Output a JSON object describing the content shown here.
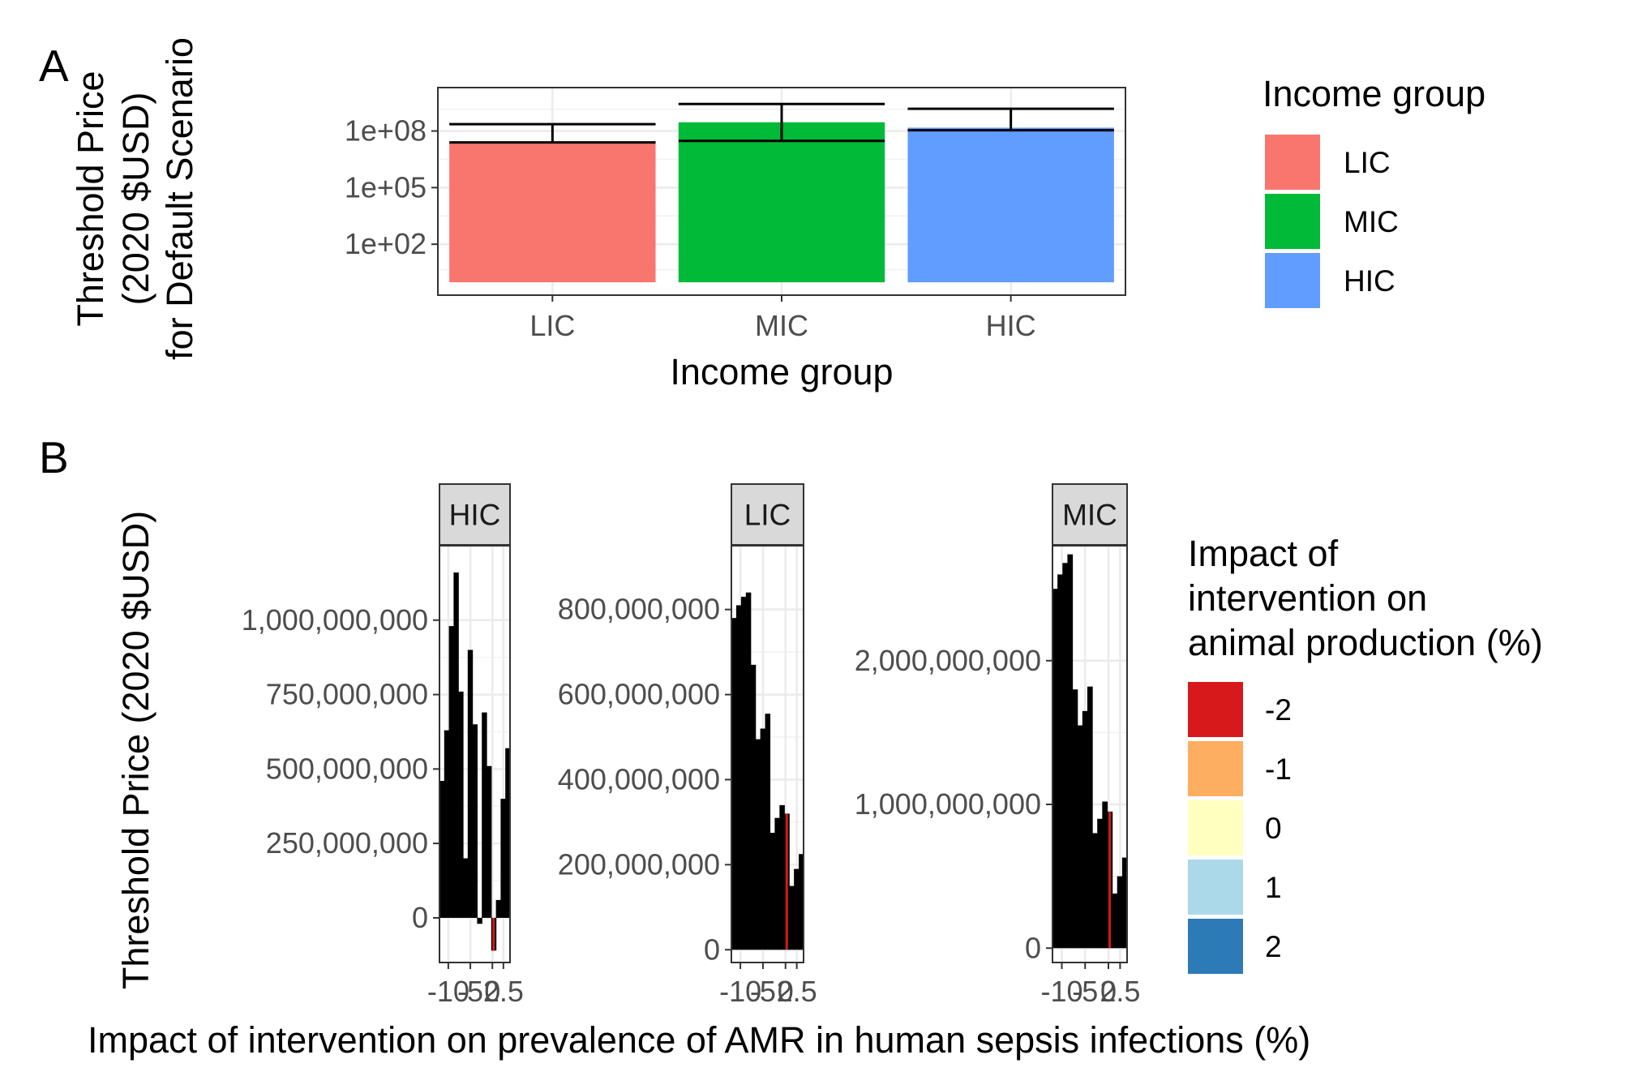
{
  "chart_data": [
    {
      "panel": "A",
      "type": "bar",
      "scale": "log10",
      "ylabel_lines": [
        "Threshold Price",
        "(2020 $USD)",
        "for Default Scenario"
      ],
      "xlabel": "Income group",
      "categories": [
        "LIC",
        "MIC",
        "HIC"
      ],
      "values": [
        25000000.0,
        290000000.0,
        150000000.0
      ],
      "error_bars": [
        {
          "low": 25000000.0,
          "high": 230000000.0
        },
        {
          "low": 30000000.0,
          "high": 2700000000.0
        },
        {
          "low": 110000000.0,
          "high": 1500000000.0
        }
      ],
      "y_ticks": [
        {
          "label": "1e+02",
          "value": 100
        },
        {
          "label": "1e+05",
          "value": 100000
        },
        {
          "label": "1e+08",
          "value": 100000000
        }
      ],
      "ylim": [
        0.2,
        20000000000.0
      ],
      "grid": true,
      "legend": {
        "title": "Income group",
        "position": "right",
        "items": [
          {
            "label": "LIC",
            "color": "#F8766D"
          },
          {
            "label": "MIC",
            "color": "#00BA38"
          },
          {
            "label": "HIC",
            "color": "#619CFF"
          }
        ]
      }
    },
    {
      "panel": "B",
      "type": "bar",
      "ylabel": "Threshold Price (2020 $USD)",
      "xlabel": "Impact of intervention on prevalence of AMR in human sepsis infections (%)",
      "x_tick_labels": [
        "-10",
        "-5",
        "0",
        "2.5"
      ],
      "facets": [
        {
          "label": "HIC",
          "ylim": [
            -150000000,
            1250000000
          ],
          "y_ticks": [
            {
              "label": "0",
              "value": 0
            },
            {
              "label": "250,000,000",
              "value": 250000000
            },
            {
              "label": "500,000,000",
              "value": 500000000
            },
            {
              "label": "750,000,000",
              "value": 750000000
            },
            {
              "label": "1,000,000,000",
              "value": 1000000000
            }
          ],
          "values": [
            460000000,
            630000000,
            980000000,
            1160000000,
            760000000,
            200000000,
            900000000,
            650000000,
            -20000000,
            690000000,
            510000000,
            -110000000,
            60000000,
            400000000,
            570000000
          ],
          "highlight_index": 11
        },
        {
          "label": "LIC",
          "ylim": [
            -30000000,
            950000000
          ],
          "y_ticks": [
            {
              "label": "0",
              "value": 0
            },
            {
              "label": "200,000,000",
              "value": 200000000
            },
            {
              "label": "400,000,000",
              "value": 400000000
            },
            {
              "label": "600,000,000",
              "value": 600000000
            },
            {
              "label": "800,000,000",
              "value": 800000000
            }
          ],
          "values": [
            780000000,
            810000000,
            830000000,
            840000000,
            670000000,
            495000000,
            520000000,
            555000000,
            275000000,
            310000000,
            340000000,
            320000000,
            150000000,
            190000000,
            225000000
          ],
          "highlight_index": 11
        },
        {
          "label": "MIC",
          "ylim": [
            -100000000,
            2800000000
          ],
          "y_ticks": [
            {
              "label": "0",
              "value": 0
            },
            {
              "label": "1,000,000,000",
              "value": 1000000000
            },
            {
              "label": "2,000,000,000",
              "value": 2000000000
            }
          ],
          "values": [
            2500000000,
            2600000000,
            2680000000,
            2740000000,
            1800000000,
            1550000000,
            1650000000,
            1820000000,
            800000000,
            900000000,
            1020000000,
            950000000,
            380000000,
            500000000,
            630000000
          ],
          "highlight_index": 11
        }
      ],
      "bar_color": "#000000",
      "highlight_color": "#D7191C",
      "grid": true,
      "legend": {
        "title_lines": [
          "Impact of",
          "intervention on",
          "animal production (%)"
        ],
        "position": "right",
        "items": [
          {
            "label": "-2",
            "color": "#D7191C"
          },
          {
            "label": "-1",
            "color": "#FDAE61"
          },
          {
            "label": "0",
            "color": "#FFFFBF"
          },
          {
            "label": "1",
            "color": "#ABD9E9"
          },
          {
            "label": "2",
            "color": "#2C7BB6"
          }
        ]
      }
    }
  ],
  "panel_tags": [
    "A",
    "B"
  ]
}
